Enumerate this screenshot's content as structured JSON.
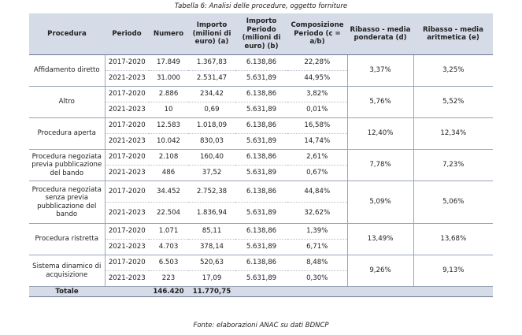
{
  "caption": "Tabella 6: Analisi delle procedure, oggetto forniture",
  "source": "Fonte: elaborazioni ANAC su dati BDNCP",
  "headers": {
    "procedura": "Procedura",
    "periodo": "Periodo",
    "numero": "Numero",
    "importo": "Importo (milioni di euro) (a)",
    "importo_periodo": "Importo Periodo (milioni di euro) (b)",
    "composizione": "Composizione Periodo (c = a/b)",
    "ribasso_ponderata": "Ribasso - media ponderata (d)",
    "ribasso_aritmetica": "Ribasso - media aritmetica (e)"
  },
  "groups": [
    {
      "name": "Affidamento diretto",
      "ribasso_d": "3,37%",
      "ribasso_e": "3,25%",
      "rows": [
        {
          "periodo": "2017-2020",
          "numero": "17.849",
          "importo": "1.367,83",
          "importo_periodo": "6.138,86",
          "composizione": "22,28%"
        },
        {
          "periodo": "2021-2023",
          "numero": "31.000",
          "importo": "2.531,47",
          "importo_periodo": "5.631,89",
          "composizione": "44,95%"
        }
      ]
    },
    {
      "name": "Altro",
      "ribasso_d": "5,76%",
      "ribasso_e": "5,52%",
      "rows": [
        {
          "periodo": "2017-2020",
          "numero": "2.886",
          "importo": "234,42",
          "importo_periodo": "6.138,86",
          "composizione": "3,82%"
        },
        {
          "periodo": "2021-2023",
          "numero": "10",
          "importo": "0,69",
          "importo_periodo": "5.631,89",
          "composizione": "0,01%"
        }
      ]
    },
    {
      "name": "Procedura aperta",
      "ribasso_d": "12,40%",
      "ribasso_e": "12,34%",
      "rows": [
        {
          "periodo": "2017-2020",
          "numero": "12.583",
          "importo": "1.018,09",
          "importo_periodo": "6.138,86",
          "composizione": "16,58%"
        },
        {
          "periodo": "2021-2023",
          "numero": "10.042",
          "importo": "830,03",
          "importo_periodo": "5.631,89",
          "composizione": "14,74%"
        }
      ]
    },
    {
      "name": "Procedura negoziata previa pubblicazione del bando",
      "ribasso_d": "7,78%",
      "ribasso_e": "7,23%",
      "rows": [
        {
          "periodo": "2017-2020",
          "numero": "2.108",
          "importo": "160,40",
          "importo_periodo": "6.138,86",
          "composizione": "2,61%"
        },
        {
          "periodo": "2021-2023",
          "numero": "486",
          "importo": "37,52",
          "importo_periodo": "5.631,89",
          "composizione": "0,67%"
        }
      ]
    },
    {
      "name": "Procedura negoziata senza previa pubblicazione del bando",
      "ribasso_d": "5,09%",
      "ribasso_e": "5,06%",
      "rows": [
        {
          "periodo": "2017-2020",
          "numero": "34.452",
          "importo": "2.752,38",
          "importo_periodo": "6.138,86",
          "composizione": "44,84%"
        },
        {
          "periodo": "2021-2023",
          "numero": "22.504",
          "importo": "1.836,94",
          "importo_periodo": "5.631,89",
          "composizione": "32,62%"
        }
      ]
    },
    {
      "name": "Procedura ristretta",
      "ribasso_d": "13,49%",
      "ribasso_e": "13,68%",
      "rows": [
        {
          "periodo": "2017-2020",
          "numero": "1.071",
          "importo": "85,11",
          "importo_periodo": "6.138,86",
          "composizione": "1,39%"
        },
        {
          "periodo": "2021-2023",
          "numero": "4.703",
          "importo": "378,14",
          "importo_periodo": "5.631,89",
          "composizione": "6,71%"
        }
      ]
    },
    {
      "name": "Sistema dinamico di acquisizione",
      "ribasso_d": "9,26%",
      "ribasso_e": "9,13%",
      "rows": [
        {
          "periodo": "2017-2020",
          "numero": "6.503",
          "importo": "520,63",
          "importo_periodo": "6.138,86",
          "composizione": "8,48%"
        },
        {
          "periodo": "2021-2023",
          "numero": "223",
          "importo": "17,09",
          "importo_periodo": "5.631,89",
          "composizione": "0,30%"
        }
      ]
    }
  ],
  "total": {
    "label": "Totale",
    "numero": "146.420",
    "importo": "11.770,75"
  }
}
